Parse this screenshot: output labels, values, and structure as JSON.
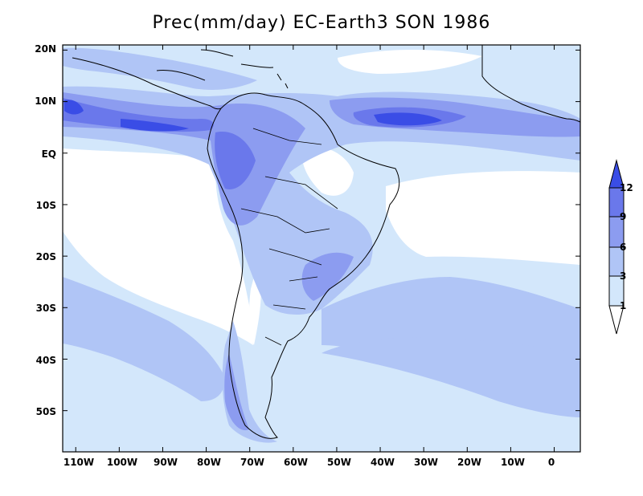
{
  "title": "Prec(mm/day) EC-Earth3 SON 1986",
  "map": {
    "variable": "Precipitation",
    "units": "mm/day",
    "model": "EC-Earth3",
    "season": "SON",
    "year": "1986",
    "lon_range": [
      -113,
      6
    ],
    "lat_range": [
      -58,
      21
    ],
    "y_ticks": [
      {
        "lat": 20,
        "label": "20N"
      },
      {
        "lat": 10,
        "label": "10N"
      },
      {
        "lat": 0,
        "label": "EQ"
      },
      {
        "lat": -10,
        "label": "10S"
      },
      {
        "lat": -20,
        "label": "20S"
      },
      {
        "lat": -30,
        "label": "30S"
      },
      {
        "lat": -40,
        "label": "40S"
      },
      {
        "lat": -50,
        "label": "50S"
      }
    ],
    "x_ticks": [
      {
        "lon": -110,
        "label": "110W"
      },
      {
        "lon": -100,
        "label": "100W"
      },
      {
        "lon": -90,
        "label": "90W"
      },
      {
        "lon": -80,
        "label": "80W"
      },
      {
        "lon": -70,
        "label": "70W"
      },
      {
        "lon": -60,
        "label": "60W"
      },
      {
        "lon": -50,
        "label": "50W"
      },
      {
        "lon": -40,
        "label": "40W"
      },
      {
        "lon": -30,
        "label": "30W"
      },
      {
        "lon": -20,
        "label": "20W"
      },
      {
        "lon": -10,
        "label": "10W"
      },
      {
        "lon": 0,
        "label": "0"
      }
    ]
  },
  "colorbar": {
    "levels": [
      "1",
      "3",
      "6",
      "9",
      "12"
    ],
    "colors": [
      "#ffffff",
      "#d3e7fb",
      "#b0c5f6",
      "#8c9cf0",
      "#6a78eb",
      "#3a4de6"
    ]
  }
}
